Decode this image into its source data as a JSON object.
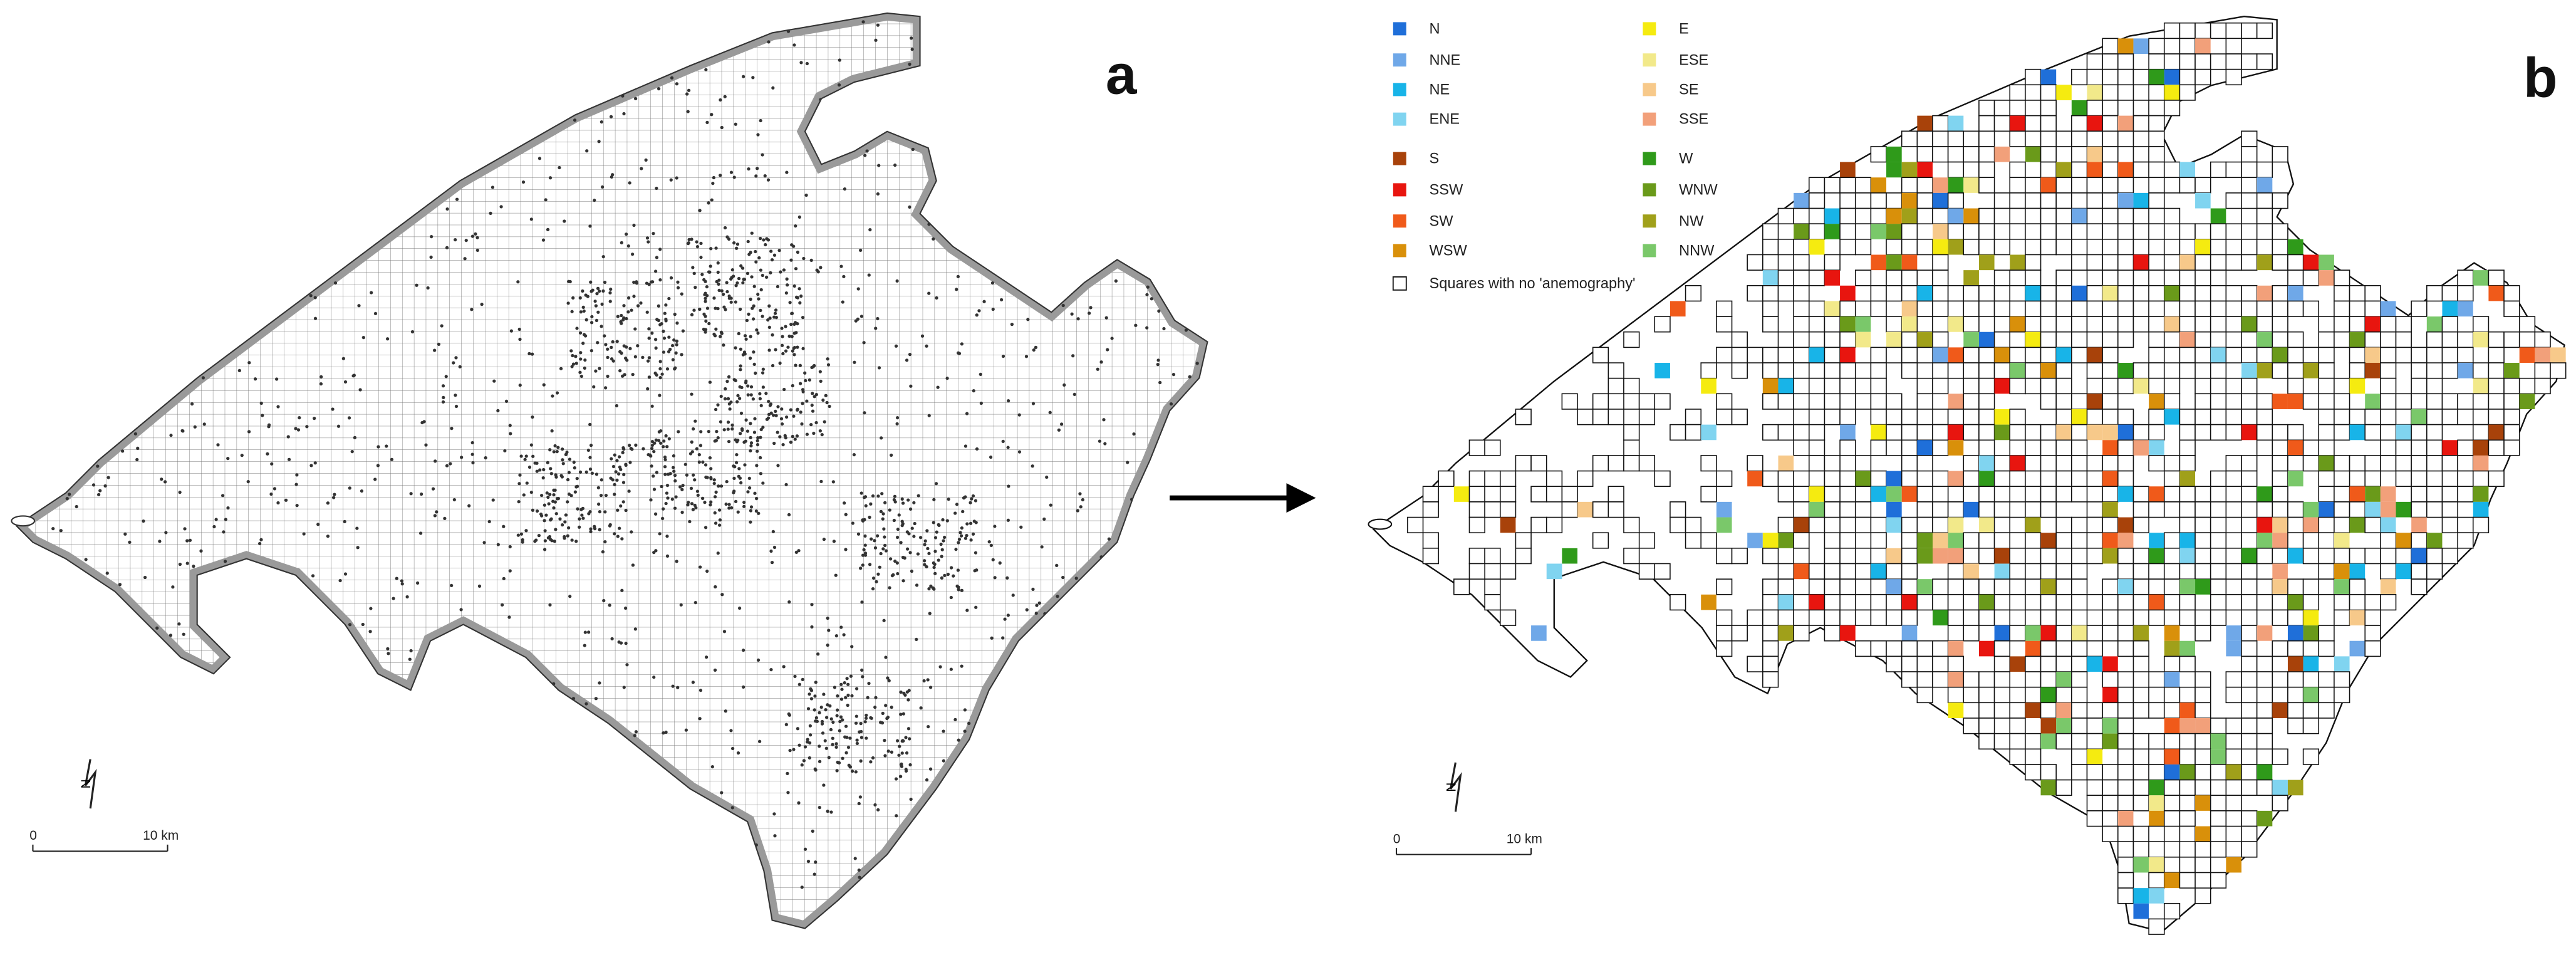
{
  "panels": [
    {
      "label": "a"
    },
    {
      "label": "b"
    }
  ],
  "legend": {
    "items": [
      {
        "label": "N",
        "color": "#1f6fd9"
      },
      {
        "label": "NNE",
        "color": "#6fa8e8"
      },
      {
        "label": "NE",
        "color": "#18b4e8"
      },
      {
        "label": "ENE",
        "color": "#80d4f0"
      },
      {
        "label": "S",
        "color": "#a8420a"
      },
      {
        "label": "SSW",
        "color": "#e8150f"
      },
      {
        "label": "SW",
        "color": "#f05a1a"
      },
      {
        "label": "WSW",
        "color": "#d9900a"
      },
      {
        "label": "E",
        "color": "#f5eb10"
      },
      {
        "label": "ESE",
        "color": "#f2e98a"
      },
      {
        "label": "SE",
        "color": "#f7c98a"
      },
      {
        "label": "SSE",
        "color": "#f2a07a"
      },
      {
        "label": "W",
        "color": "#2f9a1a"
      },
      {
        "label": "WNW",
        "color": "#6a9a1a"
      },
      {
        "label": "NW",
        "color": "#a0a01a"
      },
      {
        "label": "NNW",
        "color": "#7ac86a"
      }
    ],
    "no_data": "Squares with no 'anemography'"
  },
  "scale_bar": {
    "start": "0",
    "end": "10 km"
  },
  "north": "N"
}
